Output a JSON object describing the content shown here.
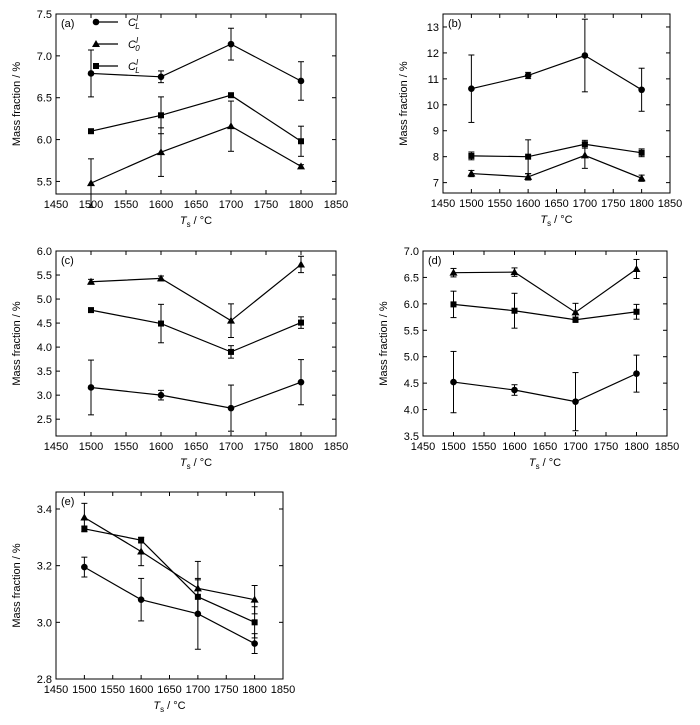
{
  "x_label": {
    "main": "T",
    "sub": "s",
    "unit": " / °C"
  },
  "legend": {
    "panel": 0,
    "entries": [
      {
        "marker": "circle",
        "main": "C",
        "sub": "L",
        "sup": "I"
      },
      {
        "marker": "triangle",
        "main": "C",
        "sub": "0",
        "sup": "I"
      },
      {
        "marker": "square",
        "main": "C",
        "sub": "L",
        "sup": "I"
      }
    ]
  },
  "chart_data": [
    {
      "type": "line",
      "label": "(a)",
      "ylabel": "Mass fraction / %",
      "x": [
        1500,
        1600,
        1700,
        1800
      ],
      "xlim": [
        1450,
        1850
      ],
      "xticks": [
        1450,
        1500,
        1550,
        1600,
        1650,
        1700,
        1750,
        1800,
        1850
      ],
      "ylim": [
        5.35,
        7.5
      ],
      "yticks": [
        5.5,
        6.0,
        6.5,
        7.0,
        7.5
      ],
      "ydec": 1,
      "series": [
        {
          "marker": "circle",
          "values": [
            6.79,
            6.75,
            7.14,
            6.7
          ],
          "errors": [
            0.28,
            0.07,
            0.19,
            0.23
          ]
        },
        {
          "marker": "triangle",
          "values": [
            5.48,
            5.85,
            6.16,
            5.68
          ],
          "errors": [
            0.29,
            0.29,
            0.3,
            0.02
          ]
        },
        {
          "marker": "square",
          "values": [
            6.1,
            6.29,
            6.53,
            5.98
          ],
          "errors": [
            0.02,
            0.22,
            0.02,
            0.18
          ]
        }
      ]
    },
    {
      "type": "line",
      "label": "(b)",
      "ylabel": "Mass fraction / %",
      "x": [
        1500,
        1600,
        1700,
        1800
      ],
      "xlim": [
        1450,
        1850
      ],
      "xticks": [
        1450,
        1500,
        1550,
        1600,
        1650,
        1700,
        1750,
        1800,
        1850
      ],
      "ylim": [
        6.6,
        13.5
      ],
      "yticks": [
        7,
        8,
        9,
        10,
        11,
        12,
        13
      ],
      "ydec": 0,
      "series": [
        {
          "marker": "circle",
          "values": [
            10.62,
            11.13,
            11.9,
            10.58
          ],
          "errors": [
            1.3,
            0.12,
            1.4,
            0.83
          ]
        },
        {
          "marker": "triangle",
          "values": [
            7.35,
            7.22,
            8.05,
            7.17
          ],
          "errors": [
            0.12,
            0.12,
            0.5,
            0.12
          ]
        },
        {
          "marker": "square",
          "values": [
            8.03,
            8.0,
            8.48,
            8.15
          ],
          "errors": [
            0.15,
            0.65,
            0.15,
            0.15
          ]
        }
      ]
    },
    {
      "type": "line",
      "label": "(c)",
      "ylabel": "Mass fraction / %",
      "x": [
        1500,
        1600,
        1700,
        1800
      ],
      "xlim": [
        1450,
        1850
      ],
      "xticks": [
        1450,
        1500,
        1550,
        1600,
        1650,
        1700,
        1750,
        1800,
        1850
      ],
      "ylim": [
        2.15,
        6.0
      ],
      "yticks": [
        2.5,
        3.0,
        3.5,
        4.0,
        4.5,
        5.0,
        5.5,
        6.0
      ],
      "ydec": 1,
      "series": [
        {
          "marker": "circle",
          "values": [
            3.16,
            3.0,
            2.73,
            3.27
          ],
          "errors": [
            0.57,
            0.1,
            0.48,
            0.47
          ]
        },
        {
          "marker": "triangle",
          "values": [
            5.36,
            5.43,
            4.55,
            5.72
          ],
          "errors": [
            0.05,
            0.05,
            0.35,
            0.17
          ]
        },
        {
          "marker": "square",
          "values": [
            4.77,
            4.49,
            3.9,
            4.51
          ],
          "errors": [
            0.02,
            0.4,
            0.13,
            0.12
          ]
        }
      ]
    },
    {
      "type": "line",
      "label": "(d)",
      "ylabel": "Mass fraction / %",
      "x": [
        1500,
        1600,
        1700,
        1800
      ],
      "xlim": [
        1450,
        1850
      ],
      "xticks": [
        1450,
        1500,
        1550,
        1600,
        1650,
        1700,
        1750,
        1800,
        1850
      ],
      "ylim": [
        3.5,
        7.0
      ],
      "yticks": [
        3.5,
        4.0,
        4.5,
        5.0,
        5.5,
        6.0,
        6.5,
        7.0
      ],
      "ydec": 1,
      "series": [
        {
          "marker": "circle",
          "values": [
            4.52,
            4.37,
            4.15,
            4.68
          ],
          "errors": [
            0.58,
            0.1,
            0.55,
            0.35
          ]
        },
        {
          "marker": "triangle",
          "values": [
            6.59,
            6.6,
            5.84,
            6.66
          ],
          "errors": [
            0.08,
            0.08,
            0.17,
            0.18
          ]
        },
        {
          "marker": "square",
          "values": [
            5.99,
            5.87,
            5.7,
            5.85
          ],
          "errors": [
            0.25,
            0.33,
            0.05,
            0.14
          ]
        }
      ]
    },
    {
      "type": "line",
      "label": "(e)",
      "ylabel": "Mass fraction / %",
      "x": [
        1500,
        1600,
        1700,
        1800
      ],
      "xlim": [
        1450,
        1850
      ],
      "xticks": [
        1450,
        1500,
        1550,
        1600,
        1650,
        1700,
        1750,
        1800,
        1850
      ],
      "ylim": [
        2.8,
        3.46
      ],
      "yticks": [
        2.8,
        3.0,
        3.2,
        3.4
      ],
      "ydec": 1,
      "series": [
        {
          "marker": "circle",
          "values": [
            3.195,
            3.08,
            3.03,
            2.925
          ],
          "errors": [
            0.035,
            0.075,
            0.125,
            0.035
          ]
        },
        {
          "marker": "triangle",
          "values": [
            3.37,
            3.25,
            3.12,
            3.08
          ],
          "errors": [
            0.05,
            0.05,
            0.095,
            0.05
          ]
        },
        {
          "marker": "square",
          "values": [
            3.33,
            3.29,
            3.09,
            3.0
          ],
          "errors": [
            0.01,
            0.01,
            0.06,
            0.055
          ]
        }
      ]
    }
  ]
}
